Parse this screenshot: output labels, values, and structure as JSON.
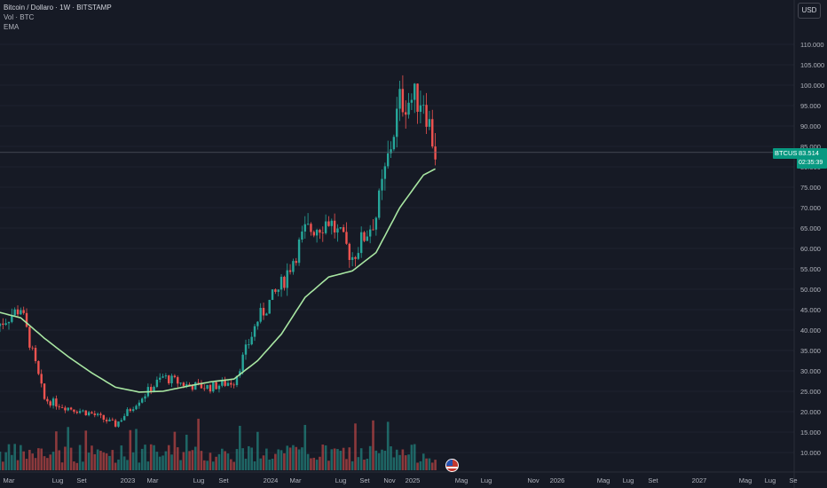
{
  "header": {
    "symbol_line": "Bitcoin / Dollaro · 1W · BITSTAMP",
    "volume_line": "Vol · BTC",
    "ema_line": "EMA"
  },
  "currency_button": "USD",
  "price_tag": {
    "symbol": "BTCUSD",
    "price": "83.514",
    "countdown": "02:35:39"
  },
  "colors": {
    "background": "#161a25",
    "up": "#26a69a",
    "down": "#ef5350",
    "ema": "#a8e6a2",
    "grid": "#1e2230",
    "axis_text": "#b2b5be",
    "price_tag": "#089981"
  },
  "chart_data": {
    "type": "line",
    "title": "Bitcoin / Dollaro · 1W · BITSTAMP",
    "y_ticks": [
      "110.000",
      "105.000",
      "100.000",
      "95.000",
      "90.000",
      "85.000",
      "80.000",
      "75.000",
      "70.000",
      "65.000",
      "60.000",
      "55.000",
      "50.000",
      "45.000",
      "40.000",
      "35.000",
      "30.000",
      "25.000",
      "20.000",
      "15.000",
      "10.000"
    ],
    "ylim": [
      10000,
      110000
    ],
    "x_tick_labels": [
      "Mar",
      "Lug",
      "Set",
      "2023",
      "Mar",
      "Lug",
      "Set",
      "2024",
      "Mar",
      "Lug",
      "Set",
      "Nov",
      "2025",
      "Mag",
      "Lug",
      "Nov",
      "2026",
      "Mag",
      "Lug",
      "Set",
      "2027",
      "Mag",
      "Lug",
      "Se"
    ],
    "price_series": {
      "name": "BTCUSD",
      "x": [
        "2022-02",
        "2022-04",
        "2022-06",
        "2022-08",
        "2022-10",
        "2022-12",
        "2023-02",
        "2023-04",
        "2023-06",
        "2023-08",
        "2023-10",
        "2023-12",
        "2024-02",
        "2024-04",
        "2024-06",
        "2024-08",
        "2024-10",
        "2024-12",
        "2025-02",
        "2025-03"
      ],
      "values": [
        41000,
        45500,
        23000,
        21000,
        19500,
        16800,
        23000,
        28500,
        26500,
        26000,
        27500,
        42500,
        51000,
        64000,
        67000,
        58000,
        68000,
        96000,
        97000,
        83514
      ]
    },
    "ema_series": {
      "name": "EMA",
      "x": [
        "2022-02",
        "2022-04",
        "2022-06",
        "2022-08",
        "2022-10",
        "2022-12",
        "2023-02",
        "2023-04",
        "2023-06",
        "2023-08",
        "2023-10",
        "2023-12",
        "2024-02",
        "2024-04",
        "2024-06",
        "2024-08",
        "2024-10",
        "2024-12",
        "2025-02",
        "2025-03"
      ],
      "values": [
        44500,
        43000,
        38000,
        33500,
        29500,
        26000,
        24800,
        25000,
        26200,
        27300,
        28000,
        32500,
        39000,
        48000,
        53000,
        54500,
        59000,
        70000,
        78000,
        79500
      ]
    },
    "last_price": 83514,
    "grid": true,
    "legend": "top-left"
  }
}
